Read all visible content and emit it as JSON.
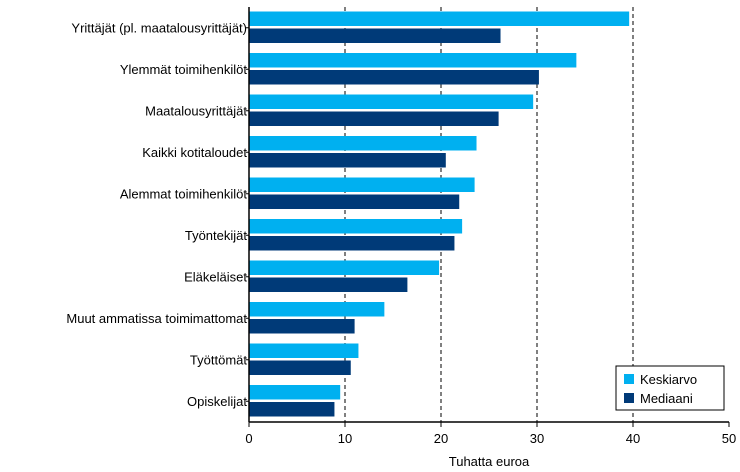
{
  "chart_data": {
    "type": "bar",
    "orientation": "horizontal",
    "categories": [
      "Yrittäjät (pl. maatalousyrittäjät)",
      "Ylemmät toimihenkilöt",
      "Maatalousyrittäjät",
      "Kaikki kotitaloudet",
      "Alemmat toimihenkilöt",
      "Työntekijät",
      "Eläkeläiset",
      "Muut ammatissa toimimattomat",
      "Työttömät",
      "Opiskelijat"
    ],
    "series": [
      {
        "name": "Keskiarvo",
        "color": "#00b0f0",
        "values": [
          39.6,
          34.1,
          29.6,
          23.7,
          23.5,
          22.2,
          19.8,
          14.1,
          11.4,
          9.5
        ]
      },
      {
        "name": "Mediaani",
        "color": "#003a78",
        "values": [
          26.2,
          30.2,
          26.0,
          20.5,
          21.9,
          21.4,
          16.5,
          11.0,
          10.6,
          8.9
        ]
      }
    ],
    "xlabel": "Tuhatta euroa",
    "ylabel": "",
    "title": "",
    "xlim": [
      0,
      50
    ],
    "xticks": [
      "0",
      "10",
      "20",
      "30",
      "40",
      "50"
    ],
    "gridlines": [
      10,
      20,
      30,
      40
    ],
    "grid_style": "dashed",
    "legend_position": "bottom-right"
  }
}
